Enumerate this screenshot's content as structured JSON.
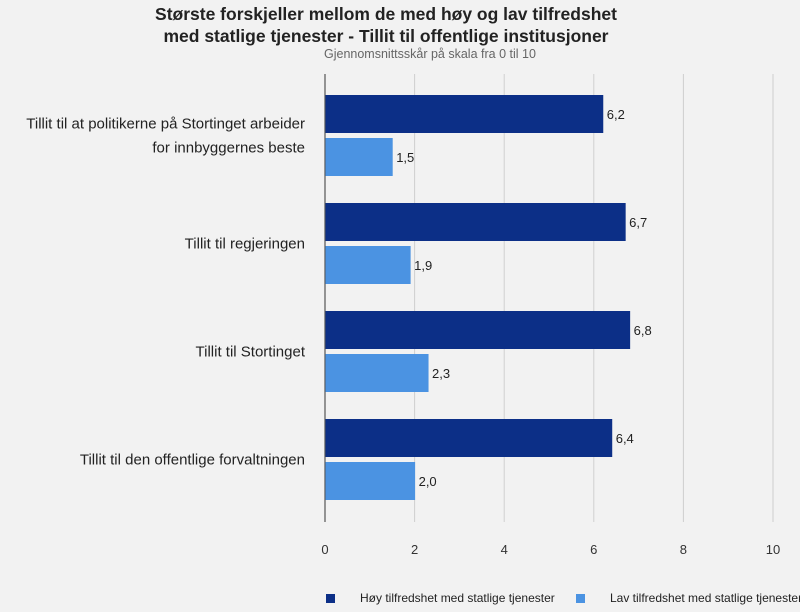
{
  "chart_data": {
    "type": "bar",
    "orientation": "horizontal",
    "title": "Største forskjeller mellom de med høy og lav tilfredshet med statlige tjenester - Tillit til offentlige institusjoner",
    "title_lines": [
      "Største forskjeller mellom de med høy og lav tilfredshet",
      "med statlige tjenester - Tillit til offentlige institusjoner"
    ],
    "subtitle": "Gjennomsnittsskår på skala fra 0 til 10",
    "categories": [
      [
        "Tillit til at politikerne på Stortinget arbeider",
        "for innbyggernes beste"
      ],
      [
        "Tillit til regjeringen"
      ],
      [
        "Tillit til Stortinget"
      ],
      [
        "Tillit til den offentlige forvaltningen"
      ]
    ],
    "series": [
      {
        "name": "Høy tilfredshet med statlige tjenester",
        "color": "#0c2f87",
        "values": [
          6.2,
          6.7,
          6.8,
          6.4
        ],
        "labels": [
          "6,2",
          "6,7",
          "6,8",
          "6,4"
        ]
      },
      {
        "name": "Lav tilfredshet med statlige tjenester",
        "color": "#4b93e2",
        "values": [
          1.5,
          1.9,
          2.3,
          2.0
        ],
        "labels": [
          "1,5",
          "1,9",
          "2,3",
          "2,0"
        ]
      }
    ],
    "xlim": [
      0,
      10
    ],
    "xticks": [
      0,
      2,
      4,
      6,
      8,
      10
    ],
    "xtick_labels": [
      "0",
      "2",
      "4",
      "6",
      "8",
      "10"
    ],
    "grid": true,
    "legend_position": "bottom"
  }
}
